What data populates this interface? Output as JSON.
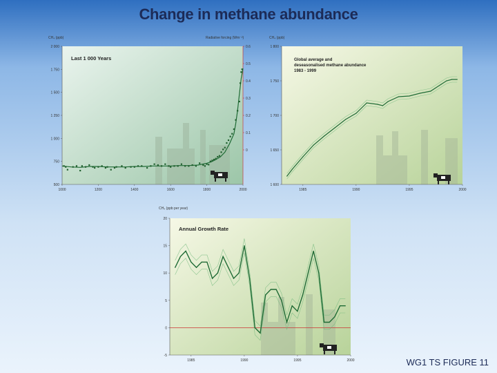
{
  "slide_title": "Change in methane abundance",
  "footer": "WG1 TS  FIGURE 11",
  "colors": {
    "series_dark": "#1f6b35",
    "series_light": "#6db77a",
    "marker": "#1f5e2d",
    "forcing_axis": "#cc2222",
    "zero_line": "#cc3333"
  },
  "chart_data": [
    {
      "type": "scatter",
      "title": "Last 1 000 Years",
      "ylabel": "CH₄ (ppb)",
      "ylabel_right": "Radiative forcing (Wm⁻²)",
      "xlim": [
        1000,
        2000
      ],
      "ylim": [
        500,
        2000
      ],
      "ylim_right": [
        -0.2,
        0.6
      ],
      "x_ticks": [
        "1000",
        "1200",
        "1400",
        "1600",
        "1800",
        "2000"
      ],
      "x_tick_values": [
        1000,
        1200,
        1400,
        1600,
        1800,
        2000
      ],
      "y_ticks": [
        "500",
        "750",
        "1 000",
        "1 250",
        "1 500",
        "1 750",
        "2 000"
      ],
      "y_tick_values": [
        500,
        750,
        1000,
        1250,
        1500,
        1750,
        2000
      ],
      "y_ticks_right": [
        "0",
        "0.1",
        "0.2",
        "0.3",
        "0.4",
        "0.5",
        "0.6"
      ],
      "y_tick_values_right": [
        0,
        0.1,
        0.2,
        0.3,
        0.4,
        0.5,
        0.6
      ],
      "points_x": [
        1010,
        1020,
        1030,
        1060,
        1080,
        1100,
        1110,
        1130,
        1150,
        1170,
        1180,
        1200,
        1220,
        1240,
        1250,
        1270,
        1290,
        1300,
        1330,
        1350,
        1380,
        1400,
        1420,
        1440,
        1470,
        1490,
        1510,
        1530,
        1550,
        1570,
        1590,
        1600,
        1620,
        1640,
        1660,
        1680,
        1700,
        1720,
        1740,
        1760,
        1780,
        1790,
        1800,
        1810,
        1820,
        1830,
        1840,
        1850,
        1860,
        1870,
        1880,
        1890,
        1900,
        1910,
        1920,
        1930,
        1940,
        1950,
        1960,
        1970,
        1980,
        1985,
        1990,
        1995
      ],
      "points_y": [
        700,
        690,
        660,
        690,
        700,
        650,
        700,
        690,
        710,
        690,
        680,
        690,
        700,
        680,
        690,
        660,
        680,
        690,
        700,
        680,
        690,
        690,
        700,
        700,
        680,
        700,
        720,
        710,
        700,
        720,
        700,
        690,
        700,
        700,
        720,
        700,
        700,
        710,
        700,
        730,
        710,
        700,
        720,
        715,
        750,
        760,
        770,
        780,
        800,
        810,
        850,
        880,
        900,
        950,
        980,
        1020,
        1050,
        1100,
        1200,
        1300,
        1400,
        1600,
        1720,
        1750
      ],
      "line_x": [
        1000,
        1050,
        1100,
        1150,
        1200,
        1250,
        1300,
        1350,
        1400,
        1450,
        1500,
        1550,
        1600,
        1650,
        1700,
        1750,
        1800,
        1825,
        1850,
        1875,
        1900,
        1925,
        1950,
        1960,
        1970,
        1980,
        1990,
        2000
      ],
      "line_y": [
        700,
        690,
        685,
        695,
        695,
        690,
        690,
        690,
        695,
        695,
        700,
        700,
        700,
        705,
        705,
        710,
        730,
        745,
        770,
        800,
        850,
        940,
        1050,
        1160,
        1300,
        1480,
        1650,
        1760
      ]
    },
    {
      "type": "line",
      "title": "Global average and\ndeseasonalised methane abundance",
      "subtitle": "1983 - 1999",
      "ylabel": "CH₄ (ppb)",
      "xlim": [
        1983,
        2000
      ],
      "ylim": [
        1600,
        1800
      ],
      "x_ticks": [
        "1985",
        "1990",
        "1995",
        "2000"
      ],
      "x_tick_values": [
        1985,
        1990,
        1995,
        2000
      ],
      "y_ticks": [
        "1 600",
        "1 650",
        "1 700",
        "1 750",
        "1 800"
      ],
      "y_tick_values": [
        1600,
        1650,
        1700,
        1750,
        1800
      ],
      "x": [
        1983.5,
        1984,
        1985,
        1986,
        1987,
        1988,
        1989,
        1990,
        1991,
        1992,
        1992.5,
        1993,
        1994,
        1995,
        1996,
        1997,
        1998,
        1998.5,
        1999,
        1999.5
      ],
      "y": [
        1612,
        1622,
        1640,
        1657,
        1670,
        1682,
        1694,
        1703,
        1718,
        1716,
        1714,
        1720,
        1727,
        1728,
        1732,
        1735,
        1745,
        1750,
        1752,
        1752
      ]
    },
    {
      "type": "line",
      "title": "Annual Growth Rate",
      "ylabel": "CH₄ (ppb per year)",
      "xlim": [
        1983,
        2000
      ],
      "ylim": [
        -5,
        20
      ],
      "x_ticks": [
        "1985",
        "1990",
        "1995",
        "2000"
      ],
      "x_tick_values": [
        1985,
        1990,
        1995,
        2000
      ],
      "y_ticks": [
        "-5",
        "0",
        "5",
        "10",
        "15",
        "20"
      ],
      "y_tick_values": [
        -5,
        0,
        5,
        10,
        15,
        20
      ],
      "x": [
        1983.5,
        1984,
        1984.5,
        1985,
        1985.5,
        1986,
        1986.5,
        1987,
        1987.5,
        1988,
        1988.5,
        1989,
        1989.5,
        1990,
        1990.5,
        1991,
        1991.5,
        1992,
        1992.5,
        1993,
        1993.5,
        1994,
        1994.5,
        1995,
        1995.5,
        1996,
        1996.5,
        1997,
        1997.5,
        1998,
        1998.5,
        1999,
        1999.5
      ],
      "y": [
        11,
        13,
        14,
        12,
        11,
        12,
        12,
        9,
        10,
        13,
        11,
        9,
        10,
        15,
        9,
        0,
        -1,
        6,
        7,
        7,
        5,
        1,
        4,
        3,
        6,
        10,
        14,
        10,
        1,
        1,
        2,
        4,
        4
      ]
    }
  ]
}
